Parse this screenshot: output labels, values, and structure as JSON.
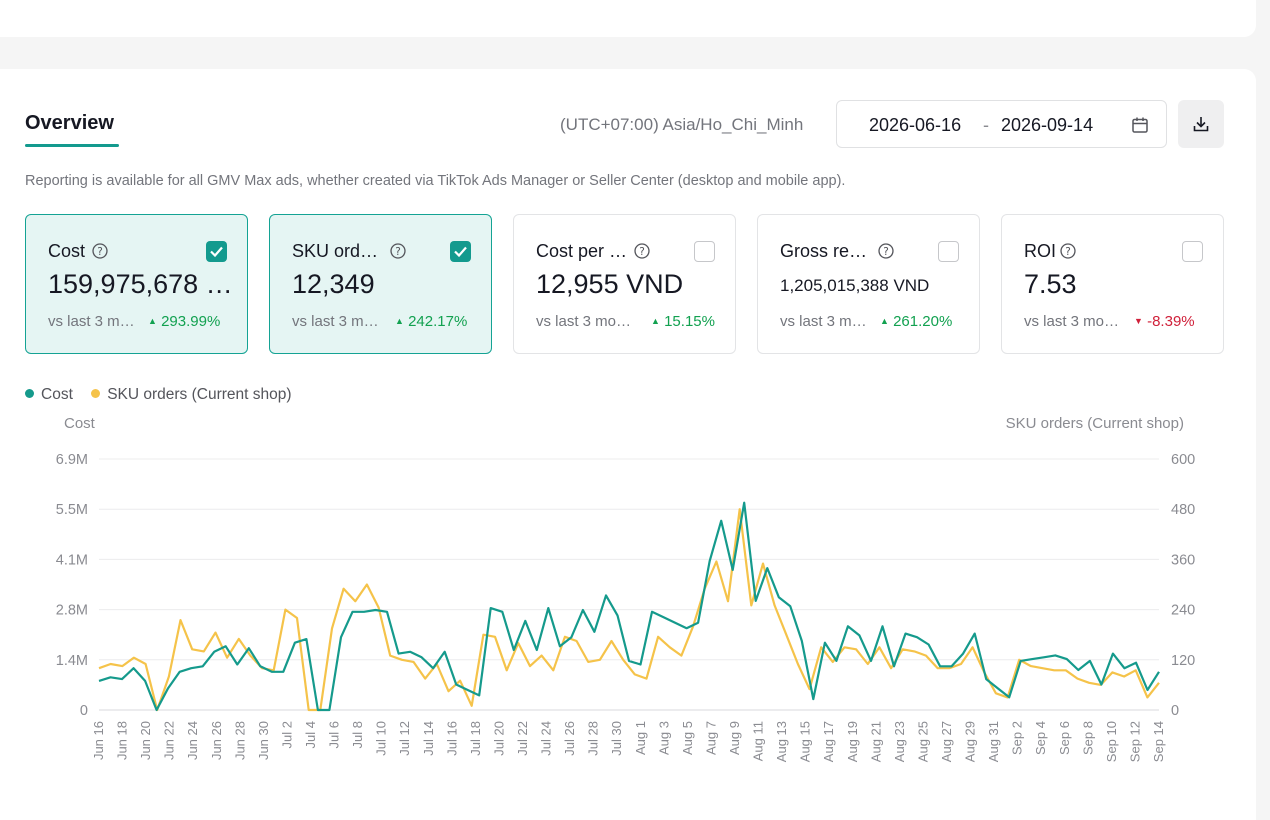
{
  "header": {
    "tab_label": "Overview",
    "timezone": "(UTC+07:00) Asia/Ho_Chi_Minh",
    "date_start": "2026-06-16",
    "date_separator": "-",
    "date_end": "2026-09-14",
    "subtitle": "Reporting is available for all GMV Max ads, whether created via TikTok Ads Manager or Seller Center (desktop and mobile app)."
  },
  "metrics": [
    {
      "title": "Cost",
      "value": "159,975,678 …",
      "vs": "vs last 3 m…",
      "change": "293.99%",
      "direction": "up",
      "checked": true
    },
    {
      "title": "SKU ord…",
      "value": "12,349",
      "vs": "vs last 3 m…",
      "change": "242.17%",
      "direction": "up",
      "checked": true
    },
    {
      "title": "Cost per …",
      "value": "12,955 VND",
      "vs": "vs last 3 mo…",
      "change": "15.15%",
      "direction": "up",
      "checked": false
    },
    {
      "title": "Gross re…",
      "value": "1,205,015,388 VND",
      "vs": "vs last 3 m…",
      "change": "261.20%",
      "direction": "up",
      "checked": false
    },
    {
      "title": "ROI",
      "value": "7.53",
      "vs": "vs last 3 mo…",
      "change": "-8.39%",
      "direction": "down",
      "checked": false
    }
  ],
  "colors": {
    "accent": "#139a8e",
    "cost_series": "#159a8c",
    "orders_series": "#f5c34a",
    "up": "#12a150",
    "down": "#d0203a"
  },
  "chart_data": {
    "type": "line",
    "left_axis_label": "Cost",
    "right_axis_label": "SKU orders (Current shop)",
    "left_ticks": [
      "0",
      "1.4M",
      "2.8M",
      "4.1M",
      "5.5M",
      "6.9M"
    ],
    "right_ticks": [
      "0",
      "120",
      "240",
      "360",
      "480",
      "600"
    ],
    "ylim_left": [
      0,
      6900000
    ],
    "ylim_right": [
      0,
      600
    ],
    "x_tick_labels": [
      "Jun 16",
      "Jun 18",
      "Jun 20",
      "Jun 22",
      "Jun 24",
      "Jun 26",
      "Jun 28",
      "Jun 30",
      "Jul 2",
      "Jul 4",
      "Jul 6",
      "Jul 8",
      "Jul 10",
      "Jul 12",
      "Jul 14",
      "Jul 16",
      "Jul 18",
      "Jul 20",
      "Jul 22",
      "Jul 24",
      "Jul 26",
      "Jul 28",
      "Jul 30",
      "Aug 1",
      "Aug 3",
      "Aug 5",
      "Aug 7",
      "Aug 9",
      "Aug 11",
      "Aug 13",
      "Aug 15",
      "Aug 17",
      "Aug 19",
      "Aug 21",
      "Aug 23",
      "Aug 25",
      "Aug 27",
      "Aug 29",
      "Aug 31",
      "Sep 2",
      "Sep 4",
      "Sep 6",
      "Sep 8",
      "Sep 10",
      "Sep 12",
      "Sep 14"
    ],
    "series": [
      {
        "name": "Cost",
        "axis": "left",
        "values": [
          800000,
          900000,
          850000,
          1150000,
          800000,
          0,
          600000,
          1050000,
          1150000,
          1200000,
          1600000,
          1750000,
          1250000,
          1700000,
          1200000,
          1050000,
          1050000,
          1850000,
          1950000,
          0,
          0,
          2000000,
          2700000,
          2700000,
          2750000,
          2700000,
          1550000,
          1600000,
          1450000,
          1150000,
          1600000,
          700000,
          550000,
          400000,
          2800000,
          2700000,
          1650000,
          2450000,
          1650000,
          2800000,
          1750000,
          2000000,
          2750000,
          2150000,
          3150000,
          2600000,
          1350000,
          1250000,
          2700000,
          2550000,
          2400000,
          2250000,
          2400000,
          4100000,
          5200000,
          3850000,
          5700000,
          3000000,
          3900000,
          3100000,
          2850000,
          1900000,
          300000,
          1850000,
          1350000,
          2300000,
          2050000,
          1350000,
          2300000,
          1200000,
          2100000,
          2000000,
          1800000,
          1200000,
          1200000,
          1550000,
          2100000,
          850000,
          600000,
          350000,
          1350000,
          1400000,
          1450000,
          1500000,
          1400000,
          1100000,
          1350000,
          700000,
          1550000,
          1150000,
          1300000,
          550000,
          1050000
        ]
      },
      {
        "name": "SKU orders (Current shop)",
        "axis": "right",
        "values": [
          100,
          110,
          105,
          125,
          110,
          0,
          80,
          215,
          145,
          140,
          185,
          125,
          170,
          130,
          100,
          95,
          240,
          220,
          0,
          0,
          195,
          290,
          260,
          300,
          245,
          130,
          120,
          115,
          75,
          110,
          45,
          70,
          10,
          180,
          175,
          95,
          160,
          105,
          130,
          95,
          175,
          165,
          115,
          120,
          165,
          120,
          85,
          75,
          175,
          150,
          130,
          200,
          290,
          355,
          260,
          480,
          250,
          350,
          250,
          180,
          110,
          50,
          150,
          115,
          150,
          145,
          110,
          150,
          100,
          145,
          140,
          130,
          100,
          100,
          110,
          150,
          90,
          40,
          30,
          120,
          105,
          100,
          95,
          95,
          75,
          65,
          60,
          90,
          80,
          95,
          30,
          65
        ]
      }
    ]
  }
}
